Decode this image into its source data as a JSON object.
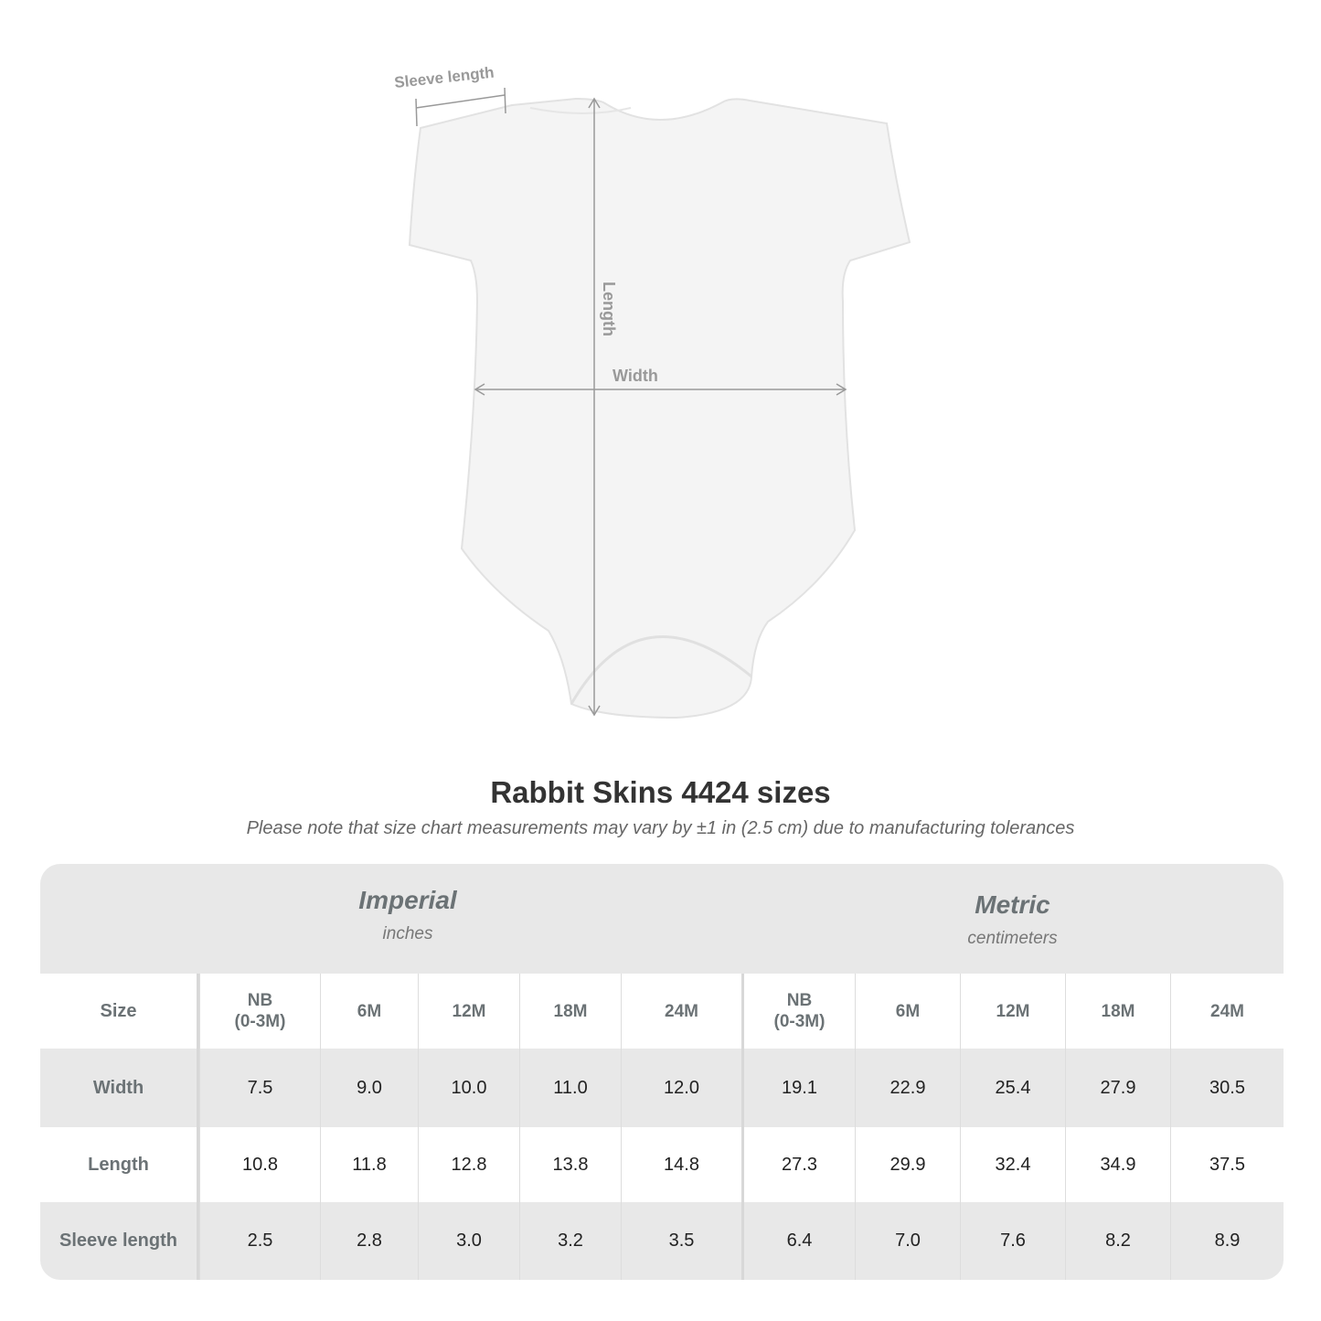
{
  "garment": {
    "labels": {
      "sleeve_length": "Sleeve length",
      "length": "Length",
      "width": "Width"
    },
    "color": "#f4f4f4"
  },
  "title": "Rabbit Skins 4424 sizes",
  "subtitle": "Please note that size chart measurements may vary by ±1 in (2.5 cm) due to manufacturing tolerances",
  "table": {
    "imperial": {
      "name": "Imperial",
      "unit": "inches"
    },
    "metric": {
      "name": "Metric",
      "unit": "centimeters"
    },
    "size_label": "Size",
    "sizes_imperial": [
      [
        "NB",
        "(0-3M)"
      ],
      [
        "6M"
      ],
      [
        "12M"
      ],
      [
        "18M"
      ],
      [
        "24M"
      ]
    ],
    "sizes_metric": [
      [
        "NB",
        "(0-3M)"
      ],
      [
        "6M"
      ],
      [
        "12M"
      ],
      [
        "18M"
      ],
      [
        "24M"
      ]
    ],
    "rows": [
      {
        "label": "Width",
        "imperial": [
          "7.5",
          "9.0",
          "10.0",
          "11.0",
          "12.0"
        ],
        "metric": [
          "19.1",
          "22.9",
          "25.4",
          "27.9",
          "30.5"
        ]
      },
      {
        "label": "Length",
        "imperial": [
          "10.8",
          "11.8",
          "12.8",
          "13.8",
          "14.8"
        ],
        "metric": [
          "27.3",
          "29.9",
          "32.4",
          "34.9",
          "37.5"
        ]
      },
      {
        "label": "Sleeve length",
        "imperial": [
          "2.5",
          "2.8",
          "3.0",
          "3.2",
          "3.5"
        ],
        "metric": [
          "6.4",
          "7.0",
          "7.6",
          "8.2",
          "8.9"
        ]
      }
    ],
    "colors": {
      "header_bg": "#e8e8e8",
      "label_text": "#6b7275"
    }
  }
}
